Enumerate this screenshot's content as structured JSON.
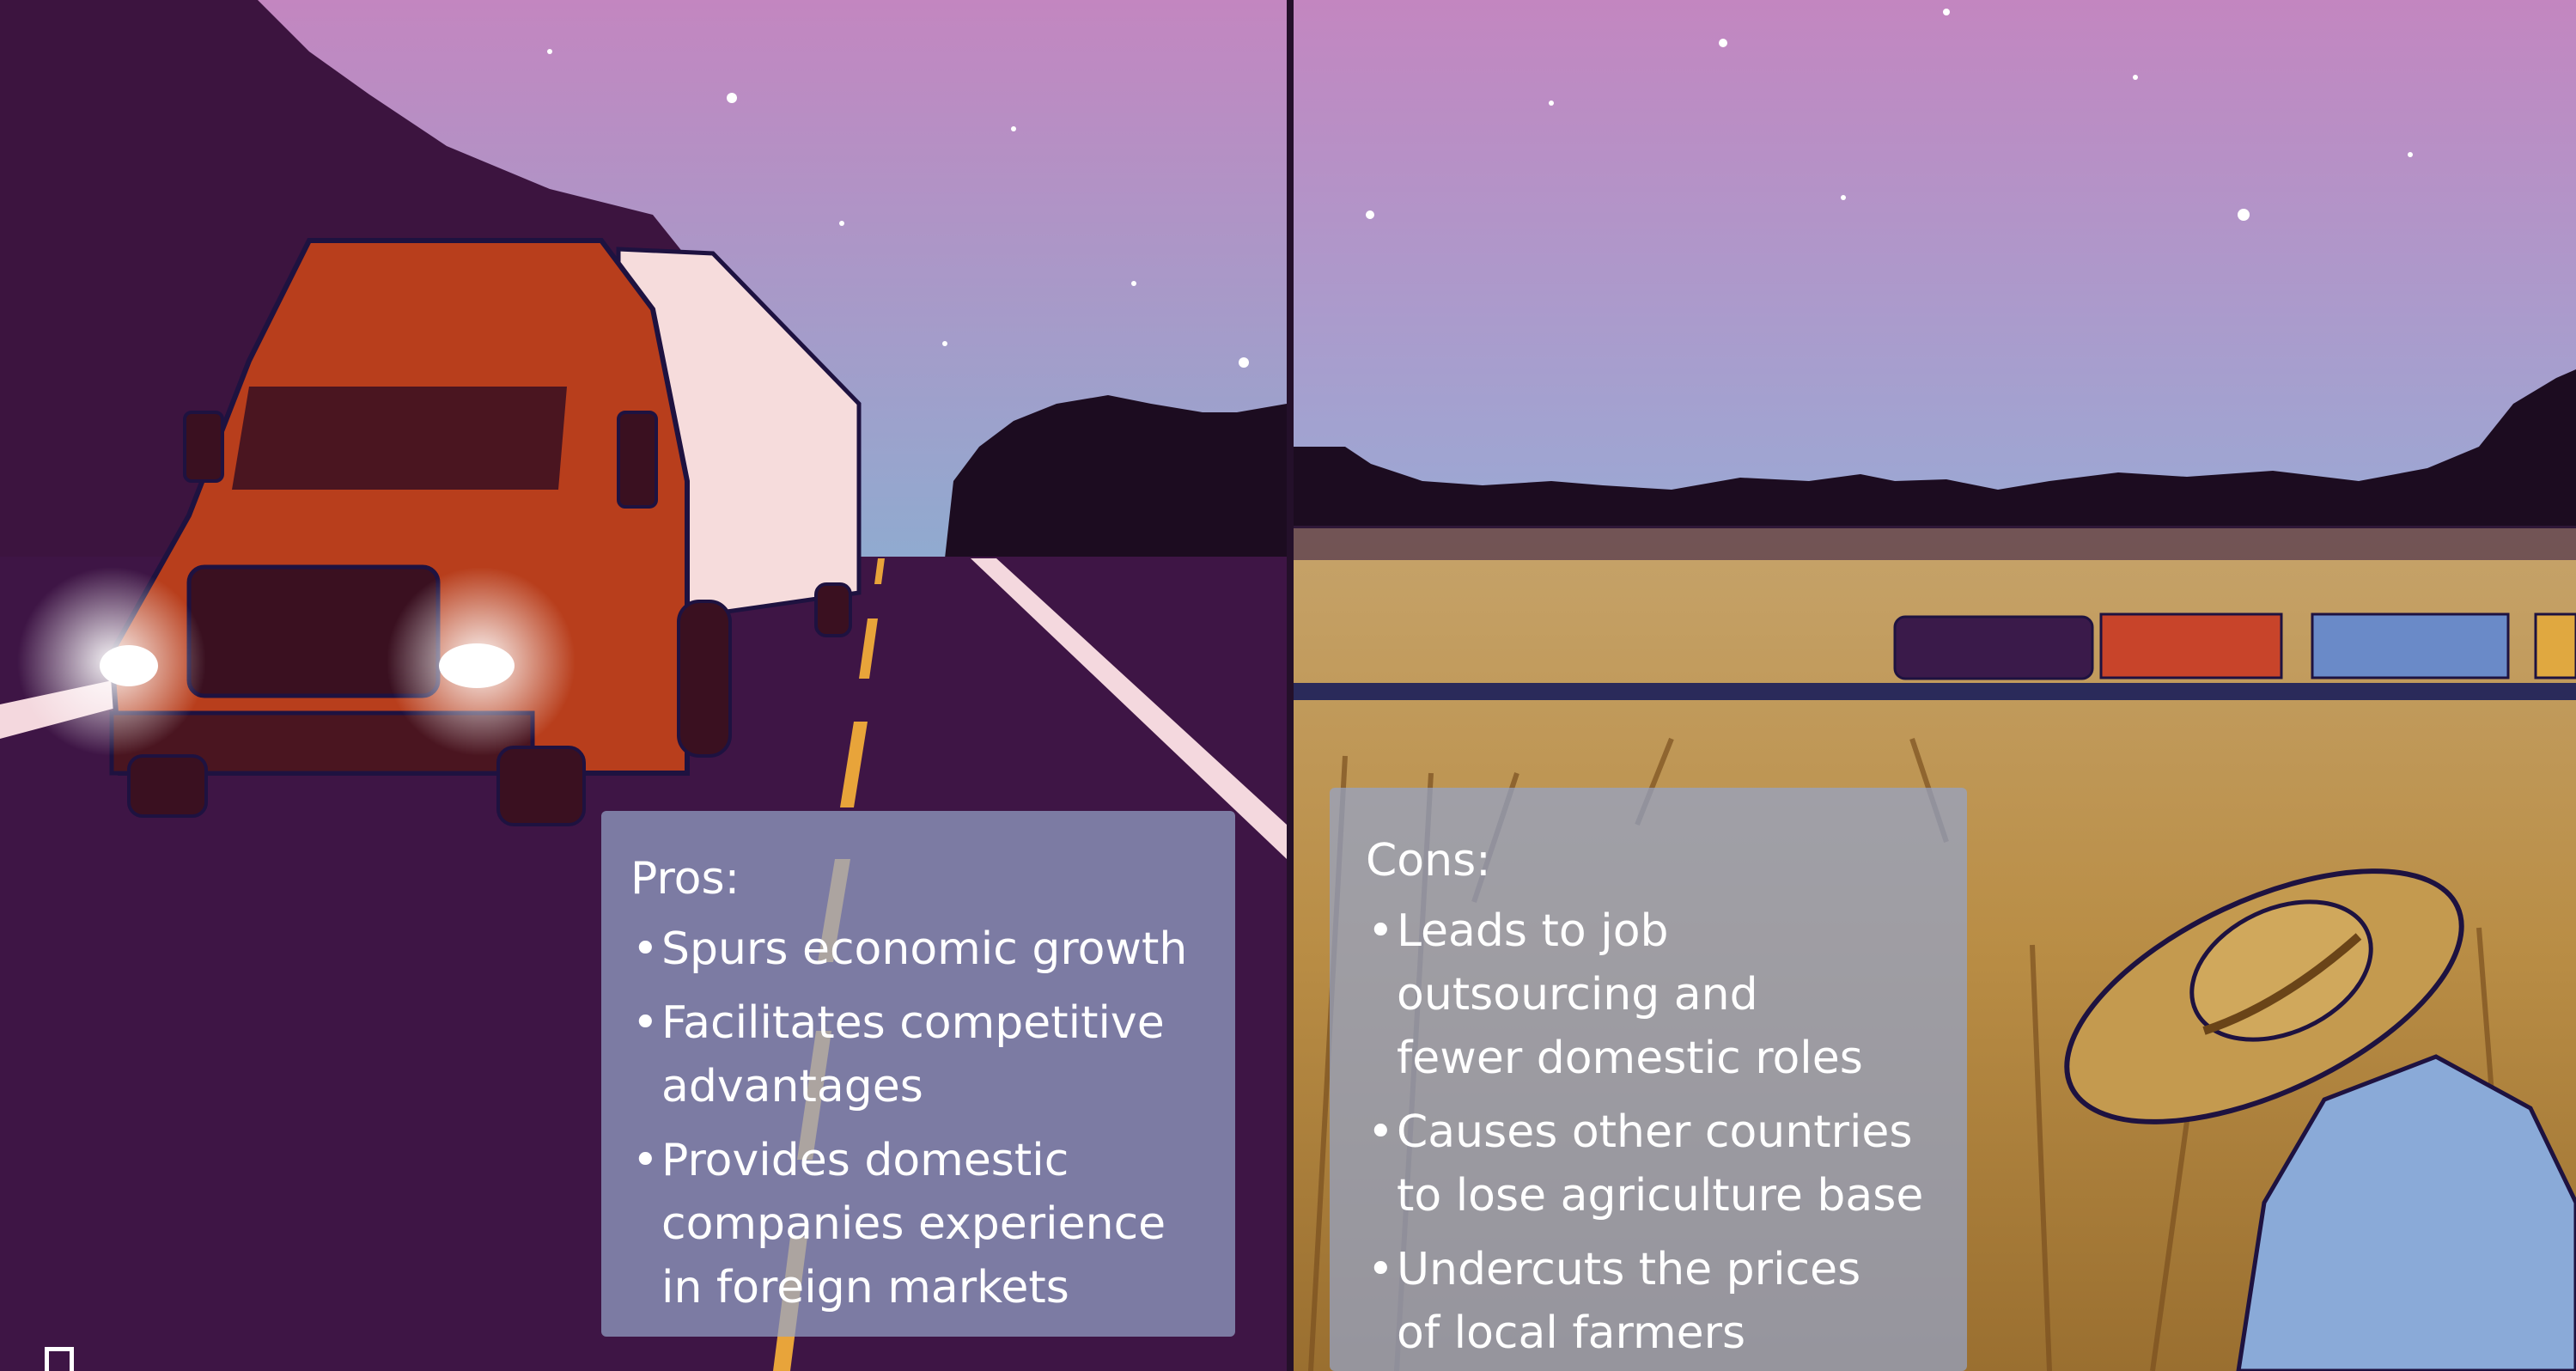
{
  "pros": {
    "title": "Pros:",
    "items": [
      "Spurs economic growth",
      "Facilitates competitive\nadvantages",
      "Provides domestic\ncompanies experience\nin foreign markets"
    ]
  },
  "cons": {
    "title": "Cons:",
    "items": [
      "Leads to job\noutsourcing and\nfewer domestic roles",
      "Causes other countries\nto lose agriculture base",
      "Undercuts the prices\nof local farmers"
    ]
  },
  "colors": {
    "sky_top": "#c386c0",
    "sky_bottom": "#8fa7cd",
    "road": "#3e1545",
    "truck_cab": "#b83e1c",
    "wheat": "#c49a4f",
    "card": "#94a4c8"
  }
}
